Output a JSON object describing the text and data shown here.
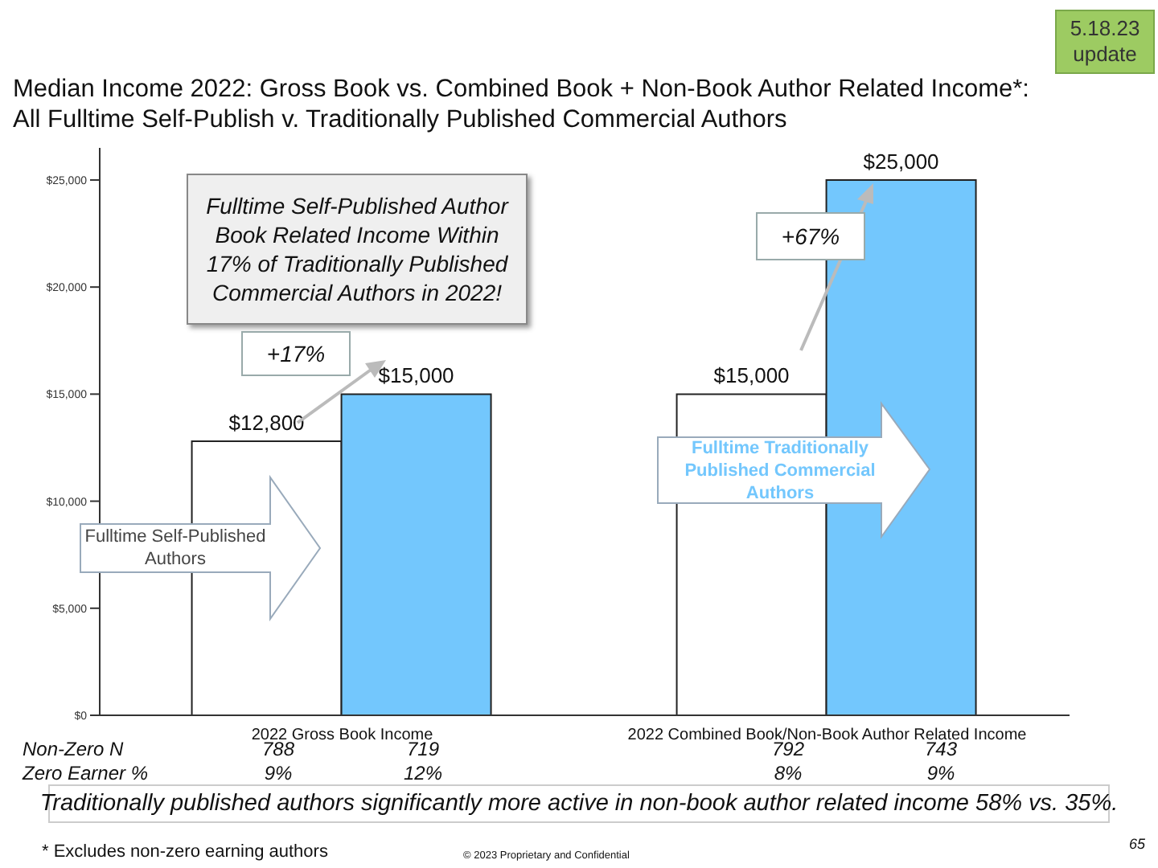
{
  "chart_data": {
    "type": "bar",
    "title": "Median Income 2022: Gross Book vs. Combined Book + Non-Book Author Related Income*:",
    "subtitle": "All Fulltime Self-Publish v. Traditionally Published Commercial Authors",
    "categories": [
      "2022 Gross Book Income",
      "2022 Combined Book/Non-Book Author Related Income"
    ],
    "series": [
      {
        "name": "Fulltime Self-Published Authors",
        "color": "#ffffff",
        "values": [
          12800,
          15000
        ],
        "value_labels": [
          "$12,800",
          "$15,000"
        ]
      },
      {
        "name": "Fulltime Traditionally Published Commercial Authors",
        "color": "#73c7fd",
        "values": [
          15000,
          25000
        ],
        "value_labels": [
          "$15,000",
          "$25,000"
        ]
      }
    ],
    "ylim": [
      0,
      26500
    ],
    "yticks": [
      {
        "value": 0,
        "label": "$0"
      },
      {
        "value": 5000,
        "label": "$5,000"
      },
      {
        "value": 10000,
        "label": "$10,000"
      },
      {
        "value": 15000,
        "label": "$15,000"
      },
      {
        "value": 20000,
        "label": "$20,000"
      },
      {
        "value": 25000,
        "label": "$25,000"
      }
    ],
    "grid": false,
    "legend": false,
    "annotations": [
      "5.18.23 update",
      "Fulltime Self-Published Author Book Related Income Within 17% of Traditionally Published Commercial Authors in 2022!",
      "+17%",
      "+67%",
      "Non-Zero N",
      "788",
      "719",
      "792",
      "743",
      "Zero Earner %",
      "9%",
      "12%",
      "8%",
      "9%",
      "Traditionally published authors significantly more active in non-book author related income 58% vs. 35%.",
      "* Excludes non-zero earning authors",
      "© 2023 Proprietary and Confidential",
      "65"
    ]
  }
}
